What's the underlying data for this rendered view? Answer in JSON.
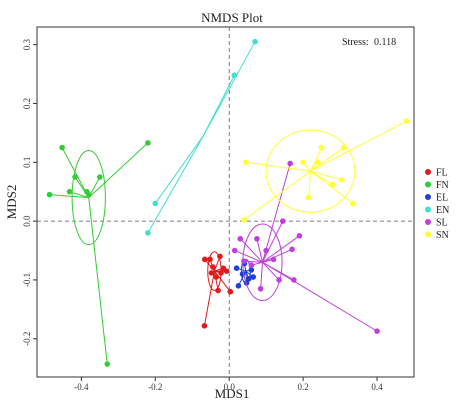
{
  "chart_data": {
    "type": "scatter",
    "title": "NMDS Plot",
    "xlabel": "MDS1",
    "ylabel": "MDS2",
    "annotation": {
      "label": "Stress:",
      "value": "0.118"
    },
    "xlim": [
      -0.52,
      0.5
    ],
    "ylim": [
      -0.265,
      0.33
    ],
    "xticks": [
      -0.4,
      -0.2,
      0.0,
      0.2,
      0.4
    ],
    "xtick_labels": [
      "-0.4",
      "-0.2",
      "0.0",
      "0.2",
      "0.4"
    ],
    "yticks": [
      -0.2,
      -0.1,
      0.0,
      0.1,
      0.2,
      0.3
    ],
    "ytick_labels": [
      "-0.2",
      "-0.1",
      "0.0",
      "0.1",
      "0.2",
      "0.3"
    ],
    "grid": false,
    "reference_lines": {
      "x": 0,
      "y": 0,
      "style": "dashed"
    },
    "legend_position": "right",
    "series": [
      {
        "name": "FL",
        "color": "#e31a1c",
        "centroid": [
          -0.04,
          -0.085
        ],
        "ellipse": {
          "rx": 0.018,
          "ry": 0.033
        },
        "points": [
          [
            -0.067,
            -0.178
          ],
          [
            -0.066,
            -0.065
          ],
          [
            -0.052,
            -0.065
          ],
          [
            -0.048,
            -0.088
          ],
          [
            -0.044,
            -0.078
          ],
          [
            -0.035,
            -0.095
          ],
          [
            -0.03,
            -0.118
          ],
          [
            -0.025,
            -0.06
          ],
          [
            -0.022,
            -0.088
          ],
          [
            -0.016,
            -0.08
          ],
          [
            -0.007,
            -0.085
          ],
          [
            0.003,
            -0.12
          ]
        ]
      },
      {
        "name": "FN",
        "color": "#33cc33",
        "centroid": [
          -0.38,
          0.04
        ],
        "ellipse": {
          "rx": 0.045,
          "ry": 0.08
        },
        "points": [
          [
            -0.486,
            0.045
          ],
          [
            -0.452,
            0.125
          ],
          [
            -0.432,
            0.05
          ],
          [
            -0.417,
            0.075
          ],
          [
            -0.385,
            0.05
          ],
          [
            -0.38,
            0.045
          ],
          [
            -0.35,
            0.075
          ],
          [
            -0.33,
            -0.243
          ],
          [
            -0.22,
            0.133
          ]
        ]
      },
      {
        "name": "EL",
        "color": "#1f3fd6",
        "centroid": [
          0.045,
          -0.085
        ],
        "ellipse": {
          "rx": 0.012,
          "ry": 0.02
        },
        "points": [
          [
            0.02,
            -0.08
          ],
          [
            0.025,
            -0.11
          ],
          [
            0.036,
            -0.09
          ],
          [
            0.041,
            -0.072
          ],
          [
            0.047,
            -0.105
          ],
          [
            0.053,
            -0.098
          ],
          [
            0.06,
            -0.083
          ],
          [
            0.065,
            -0.095
          ]
        ]
      },
      {
        "name": "EN",
        "color": "#40e0d0",
        "centroid": [
          -0.07,
          0.145
        ],
        "ellipse": {
          "rx": 0.0,
          "ry": 0.0
        },
        "points": [
          [
            -0.22,
            -0.02
          ],
          [
            -0.2,
            0.03
          ],
          [
            0.014,
            0.248
          ],
          [
            0.07,
            0.305
          ]
        ]
      },
      {
        "name": "SL",
        "color": "#bf3fdd",
        "centroid": [
          0.09,
          -0.07
        ],
        "ellipse": {
          "rx": 0.053,
          "ry": 0.065
        },
        "points": [
          [
            0.015,
            -0.05
          ],
          [
            0.03,
            -0.03
          ],
          [
            0.04,
            -0.068
          ],
          [
            0.06,
            -0.075
          ],
          [
            0.075,
            -0.03
          ],
          [
            0.085,
            -0.115
          ],
          [
            0.1,
            -0.05
          ],
          [
            0.12,
            -0.065
          ],
          [
            0.135,
            -0.1
          ],
          [
            0.145,
            0.0
          ],
          [
            0.165,
            0.098
          ],
          [
            0.17,
            -0.048
          ],
          [
            0.175,
            -0.1
          ],
          [
            0.19,
            -0.025
          ],
          [
            0.4,
            -0.187
          ]
        ]
      },
      {
        "name": "SN",
        "color": "#ffff33",
        "centroid": [
          0.22,
          0.085
        ],
        "ellipse": {
          "rx": 0.12,
          "ry": 0.07
        },
        "points": [
          [
            0.04,
            0.002
          ],
          [
            0.045,
            0.1
          ],
          [
            0.2,
            0.1
          ],
          [
            0.215,
            0.04
          ],
          [
            0.24,
            0.1
          ],
          [
            0.25,
            0.125
          ],
          [
            0.28,
            0.062
          ],
          [
            0.305,
            0.07
          ],
          [
            0.31,
            0.125
          ],
          [
            0.335,
            0.03
          ],
          [
            0.48,
            0.17
          ]
        ]
      }
    ]
  }
}
